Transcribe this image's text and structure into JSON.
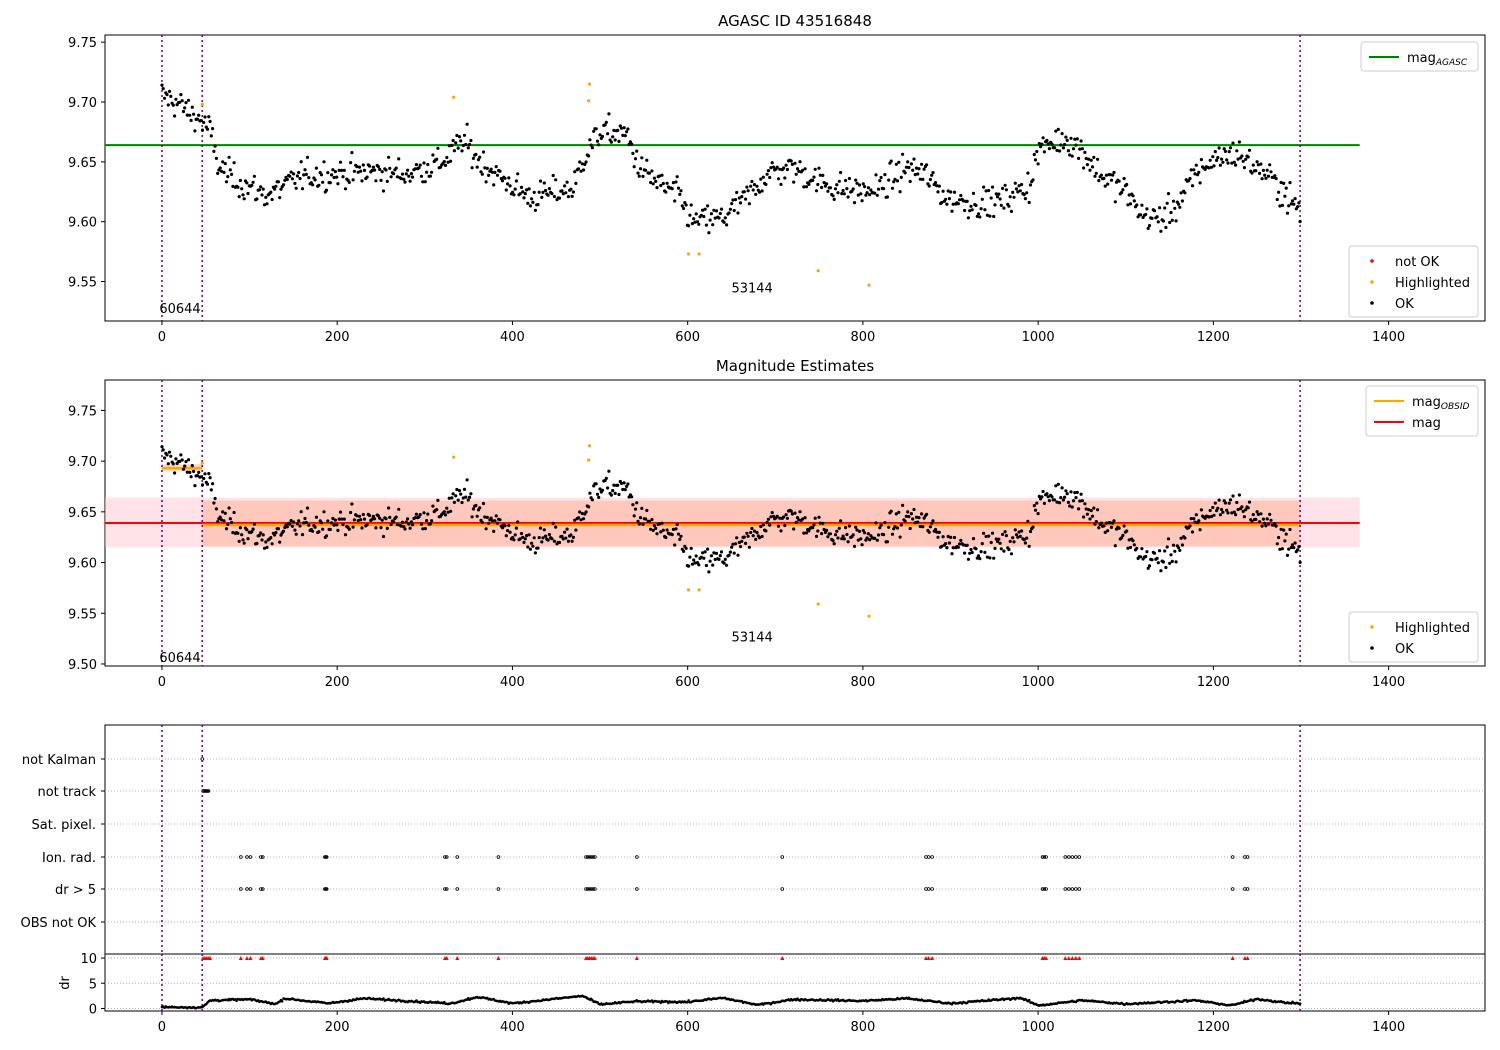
{
  "colors": {
    "ok": "#000000",
    "highlighted": "#ffa500",
    "not_ok": "#ff0000",
    "mag_agasc_line": "#008000",
    "mag_obsid_line": "#ffa500",
    "mag_line": "#ff0000",
    "band_mag": "#ffc0cb",
    "band_obsid": "#ffa07a",
    "obs_boundary": "#800080",
    "grid": "#b0b0b0"
  },
  "chart_data": [
    {
      "type": "scatter",
      "title": "AGASC ID 43516848",
      "xlim": [
        -65,
        1510
      ],
      "ylim": [
        9.517,
        9.756
      ],
      "xticks": [
        "0",
        "200",
        "400",
        "600",
        "800",
        "1000",
        "1200",
        "1400"
      ],
      "yticks": [
        "9.55",
        "9.60",
        "9.65",
        "9.70",
        "9.75"
      ],
      "mag_agasc": 9.664,
      "mag_agasc_xrange": [
        -65,
        1367
      ],
      "obs_boundaries": [
        0,
        46,
        1299
      ],
      "obs_labels": [
        {
          "text": "60644",
          "x": -3,
          "y": 9.528
        },
        {
          "text": "53144",
          "x": 650,
          "y": 9.545
        }
      ],
      "legend_upper": [
        {
          "name": "mag",
          "sub": "AGASC",
          "kind": "line",
          "color": "#008000"
        }
      ],
      "legend_lower": [
        {
          "name": "not OK",
          "kind": "marker",
          "color": "#ff0000"
        },
        {
          "name": "Highlighted",
          "kind": "marker",
          "color": "#ffa500"
        },
        {
          "name": "OK",
          "kind": "marker",
          "color": "#000000"
        }
      ],
      "highlighted_points": [
        [
          46,
          9.698
        ],
        [
          333,
          9.704
        ],
        [
          487,
          9.701
        ],
        [
          488,
          9.715
        ],
        [
          601,
          9.573
        ],
        [
          613,
          9.573
        ],
        [
          749,
          9.559
        ],
        [
          807,
          9.547
        ]
      ],
      "ok_trend": {
        "note_seed": 12345,
        "knots": [
          [
            0,
            9.706
          ],
          [
            20,
            9.698
          ],
          [
            45,
            9.684
          ],
          [
            55,
            9.676
          ],
          [
            65,
            9.645
          ],
          [
            90,
            9.632
          ],
          [
            120,
            9.622
          ],
          [
            160,
            9.638
          ],
          [
            200,
            9.64
          ],
          [
            240,
            9.642
          ],
          [
            280,
            9.64
          ],
          [
            320,
            9.65
          ],
          [
            345,
            9.668
          ],
          [
            360,
            9.652
          ],
          [
            380,
            9.64
          ],
          [
            400,
            9.63
          ],
          [
            420,
            9.62
          ],
          [
            450,
            9.625
          ],
          [
            470,
            9.628
          ],
          [
            480,
            9.652
          ],
          [
            500,
            9.675
          ],
          [
            530,
            9.673
          ],
          [
            545,
            9.645
          ],
          [
            570,
            9.63
          ],
          [
            590,
            9.622
          ],
          [
            605,
            9.6
          ],
          [
            640,
            9.603
          ],
          [
            670,
            9.622
          ],
          [
            690,
            9.64
          ],
          [
            720,
            9.645
          ],
          [
            760,
            9.63
          ],
          [
            800,
            9.625
          ],
          [
            820,
            9.628
          ],
          [
            850,
            9.645
          ],
          [
            870,
            9.64
          ],
          [
            895,
            9.62
          ],
          [
            930,
            9.615
          ],
          [
            960,
            9.618
          ],
          [
            990,
            9.63
          ],
          [
            1000,
            9.66
          ],
          [
            1030,
            9.67
          ],
          [
            1050,
            9.66
          ],
          [
            1070,
            9.64
          ],
          [
            1100,
            9.625
          ],
          [
            1120,
            9.605
          ],
          [
            1140,
            9.602
          ],
          [
            1160,
            9.615
          ],
          [
            1180,
            9.64
          ],
          [
            1200,
            9.652
          ],
          [
            1225,
            9.658
          ],
          [
            1240,
            9.65
          ],
          [
            1260,
            9.64
          ],
          [
            1280,
            9.625
          ],
          [
            1300,
            9.607
          ]
        ],
        "count": 900,
        "noise": 0.013
      }
    },
    {
      "type": "scatter",
      "title": "Magnitude Estimates",
      "xlim": [
        -65,
        1510
      ],
      "ylim": [
        9.498,
        9.78
      ],
      "xticks": [
        "0",
        "200",
        "400",
        "600",
        "800",
        "1000",
        "1200",
        "1400"
      ],
      "yticks": [
        "9.50",
        "9.55",
        "9.60",
        "9.65",
        "9.70",
        "9.75"
      ],
      "mag": 9.639,
      "mag_xrange": [
        -65,
        1367
      ],
      "mag_band": [
        9.615,
        9.664
      ],
      "mag_obsid_segments": [
        {
          "x": [
            0,
            46
          ],
          "y": 9.693,
          "band": [
            9.69,
            9.697
          ]
        },
        {
          "x": [
            46,
            1299
          ],
          "y": 9.637,
          "band": [
            9.616,
            9.661
          ]
        }
      ],
      "obs_boundaries": [
        0,
        46,
        1299
      ],
      "obs_labels": [
        {
          "text": "60644",
          "x": -3,
          "y": 9.507
        },
        {
          "text": "53144",
          "x": 650,
          "y": 9.527
        }
      ],
      "legend_upper": [
        {
          "name": "mag",
          "sub": "OBSID",
          "kind": "line",
          "color": "#ffa500"
        },
        {
          "name": "mag",
          "sub": "",
          "kind": "line",
          "color": "#ff0000"
        }
      ],
      "legend_lower": [
        {
          "name": "Highlighted",
          "kind": "marker",
          "color": "#ffa500"
        },
        {
          "name": "OK",
          "kind": "marker",
          "color": "#000000"
        }
      ],
      "same_points_as_panel": 0
    },
    {
      "type": "scatter",
      "title": "",
      "xlim": [
        -65,
        1510
      ],
      "xticks": [
        "0",
        "200",
        "400",
        "600",
        "800",
        "1000",
        "1200",
        "1400"
      ],
      "categories": [
        "not Kalman",
        "not track",
        "Sat. pixel.",
        "Ion. rad.",
        "dr > 5",
        "OBS not OK"
      ],
      "flag_points": {
        "not Kalman": [
          46
        ],
        "not track": [
          47,
          48,
          49,
          50,
          51,
          52,
          53
        ],
        "Sat. pixel.": [],
        "Ion. rad.": [
          90,
          97,
          101,
          113,
          115,
          186,
          187,
          188,
          323,
          325,
          337,
          384,
          484,
          486,
          488,
          490,
          492,
          494,
          542,
          708,
          872,
          875,
          879,
          1005,
          1007,
          1009,
          1031,
          1035,
          1039,
          1043,
          1047,
          1222,
          1236,
          1239
        ],
        "dr > 5": [
          90,
          97,
          101,
          113,
          115,
          186,
          187,
          188,
          323,
          325,
          337,
          384,
          484,
          486,
          488,
          490,
          492,
          494,
          542,
          708,
          872,
          875,
          879,
          1005,
          1007,
          1009,
          1031,
          1035,
          1039,
          1043,
          1047,
          1222,
          1236,
          1239
        ],
        "OBS not OK": []
      },
      "dr_panel": {
        "ylabel": "dr",
        "ylim": [
          -0.5,
          10.8
        ],
        "yticks": [
          "0",
          "5",
          "10"
        ],
        "clipped_value": 10,
        "clipped_x": [
          47,
          49,
          51,
          53,
          55,
          90,
          97,
          101,
          113,
          115,
          186,
          187,
          188,
          323,
          325,
          337,
          384,
          484,
          486,
          488,
          490,
          492,
          494,
          542,
          708,
          872,
          875,
          879,
          1005,
          1007,
          1009,
          1031,
          1035,
          1039,
          1043,
          1047,
          1222,
          1236,
          1239
        ],
        "trend_knots": [
          [
            0,
            0.3
          ],
          [
            46,
            0.2
          ],
          [
            55,
            1.6
          ],
          [
            100,
            1.8
          ],
          [
            130,
            0.9
          ],
          [
            140,
            2.0
          ],
          [
            190,
            1.0
          ],
          [
            230,
            2.0
          ],
          [
            330,
            1.0
          ],
          [
            360,
            2.3
          ],
          [
            400,
            1.0
          ],
          [
            480,
            2.5
          ],
          [
            500,
            0.8
          ],
          [
            540,
            1.4
          ],
          [
            600,
            1.3
          ],
          [
            640,
            2.1
          ],
          [
            680,
            0.7
          ],
          [
            720,
            1.8
          ],
          [
            800,
            1.5
          ],
          [
            850,
            2.0
          ],
          [
            900,
            1.0
          ],
          [
            980,
            2.1
          ],
          [
            1000,
            0.6
          ],
          [
            1050,
            1.6
          ],
          [
            1100,
            0.9
          ],
          [
            1180,
            1.6
          ],
          [
            1220,
            0.6
          ],
          [
            1250,
            1.9
          ],
          [
            1280,
            1.2
          ],
          [
            1299,
            1.0
          ]
        ]
      }
    }
  ]
}
